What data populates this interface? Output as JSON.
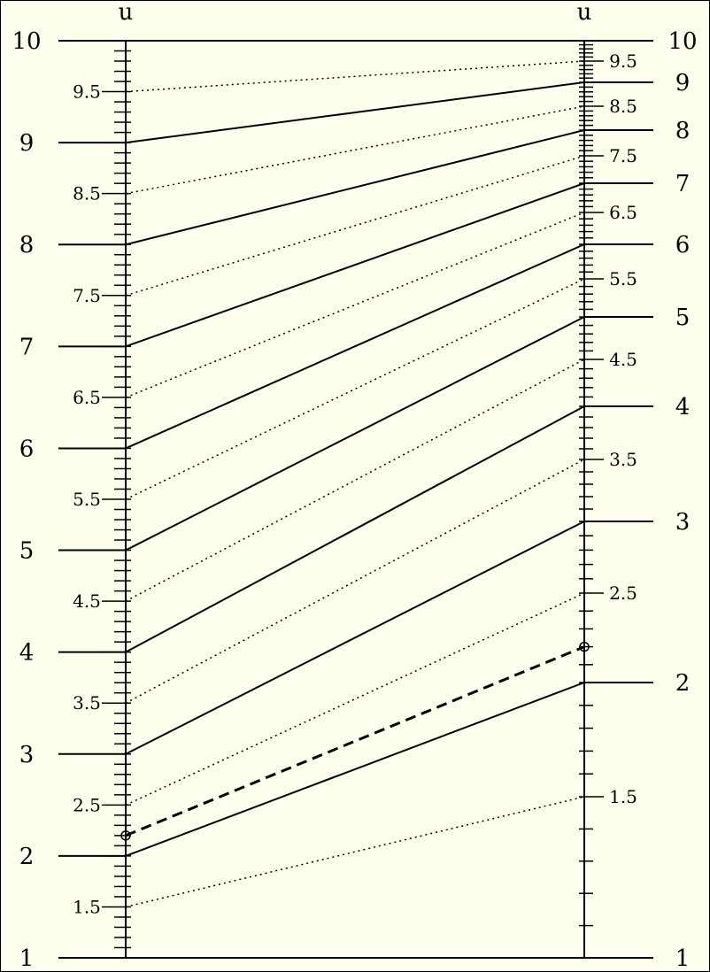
{
  "colors": {
    "background": "#ffffee",
    "border": "#000000",
    "ink": "#000000"
  },
  "left_axis": {
    "title": "u",
    "major": [
      {
        "value": 10,
        "label": "10"
      },
      {
        "value": 9,
        "label": "9"
      },
      {
        "value": 8,
        "label": "8"
      },
      {
        "value": 7,
        "label": "7"
      },
      {
        "value": 6,
        "label": "6"
      },
      {
        "value": 5,
        "label": "5"
      },
      {
        "value": 4,
        "label": "4"
      },
      {
        "value": 3,
        "label": "3"
      },
      {
        "value": 2,
        "label": "2"
      },
      {
        "value": 1,
        "label": "1"
      }
    ],
    "half": [
      {
        "value": 9.5,
        "label": "9.5"
      },
      {
        "value": 8.5,
        "label": "8.5"
      },
      {
        "value": 7.5,
        "label": "7.5"
      },
      {
        "value": 6.5,
        "label": "6.5"
      },
      {
        "value": 5.5,
        "label": "5.5"
      },
      {
        "value": 4.5,
        "label": "4.5"
      },
      {
        "value": 3.5,
        "label": "3.5"
      },
      {
        "value": 2.5,
        "label": "2.5"
      },
      {
        "value": 1.5,
        "label": "1.5"
      }
    ]
  },
  "right_axis": {
    "title": "u",
    "major": [
      {
        "value": 10,
        "label": "10"
      },
      {
        "value": 9,
        "label": "9"
      },
      {
        "value": 8,
        "label": "8"
      },
      {
        "value": 7,
        "label": "7"
      },
      {
        "value": 6,
        "label": "6"
      },
      {
        "value": 5,
        "label": "5"
      },
      {
        "value": 4,
        "label": "4"
      },
      {
        "value": 3,
        "label": "3"
      },
      {
        "value": 2,
        "label": "2"
      },
      {
        "value": 1,
        "label": "1"
      }
    ],
    "half": [
      {
        "value": 9.5,
        "label": "9.5"
      },
      {
        "value": 8.5,
        "label": "8.5"
      },
      {
        "value": 7.5,
        "label": "7.5"
      },
      {
        "value": 6.5,
        "label": "6.5"
      },
      {
        "value": 5.5,
        "label": "5.5"
      },
      {
        "value": 4.5,
        "label": "4.5"
      },
      {
        "value": 3.5,
        "label": "3.5"
      },
      {
        "value": 2.5,
        "label": "2.5"
      },
      {
        "value": 1.5,
        "label": "1.5"
      }
    ]
  },
  "example_line": {
    "from": 2.2,
    "to": 2.2
  }
}
